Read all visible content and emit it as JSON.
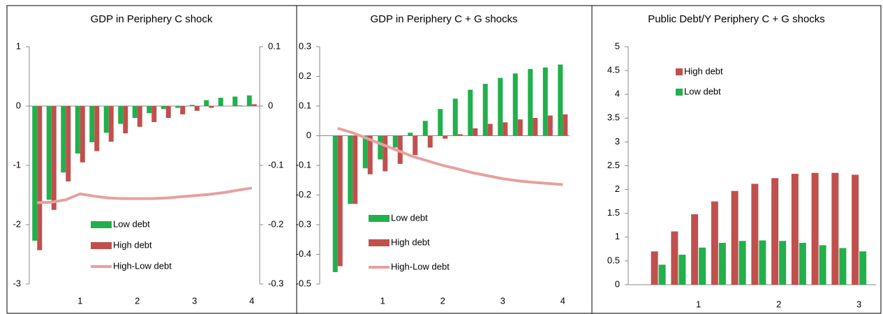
{
  "chart_data": [
    {
      "type": "bar",
      "title": "GDP in Periphery C shock",
      "categories": [
        null,
        null,
        null,
        "1",
        null,
        null,
        null,
        "2",
        null,
        null,
        null,
        "3",
        null,
        null,
        null,
        "4"
      ],
      "ylim": [
        -3,
        1
      ],
      "yticks": [
        -3,
        -2,
        -1,
        0,
        1
      ],
      "y2lim": [
        -0.3,
        0.1
      ],
      "y2ticks": [
        -0.3,
        -0.2,
        -0.1,
        0,
        0.1
      ],
      "series": [
        {
          "name": "Low debt",
          "type": "bar",
          "color": "#21b04b",
          "values": [
            -2.27,
            -1.58,
            -1.12,
            -0.8,
            -0.61,
            -0.45,
            -0.3,
            -0.2,
            -0.12,
            -0.05,
            -0.03,
            0.02,
            0.1,
            0.14,
            0.16,
            0.18
          ]
        },
        {
          "name": "High debt",
          "type": "bar",
          "color": "#c0504d",
          "values": [
            -2.43,
            -1.75,
            -1.27,
            -0.95,
            -0.76,
            -0.6,
            -0.46,
            -0.35,
            -0.27,
            -0.2,
            -0.14,
            -0.08,
            -0.03,
            0.0,
            0.01,
            0.03
          ]
        },
        {
          "name": "High-Low debt",
          "type": "line",
          "axis": "y2",
          "color": "#e6a19f",
          "values": [
            -0.163,
            -0.162,
            -0.158,
            -0.148,
            -0.152,
            -0.155,
            -0.156,
            -0.156,
            -0.156,
            -0.155,
            -0.153,
            -0.151,
            -0.149,
            -0.146,
            -0.142,
            -0.138
          ]
        }
      ]
    },
    {
      "type": "bar",
      "title": "GDP in Periphery C + G shocks",
      "categories": [
        null,
        null,
        null,
        "1",
        null,
        null,
        null,
        "2",
        null,
        null,
        null,
        "3",
        null,
        null,
        null,
        "4"
      ],
      "ylim": [
        -0.5,
        0.3
      ],
      "yticks": [
        -0.5,
        -0.4,
        -0.3,
        -0.2,
        -0.1,
        0,
        0.1,
        0.2,
        0.3
      ],
      "series": [
        {
          "name": "Low debt",
          "type": "bar",
          "color": "#21b04b",
          "values": [
            -0.46,
            -0.23,
            -0.11,
            -0.08,
            -0.04,
            0.01,
            0.05,
            0.09,
            0.125,
            0.155,
            0.175,
            0.195,
            0.21,
            0.225,
            0.23,
            0.24
          ]
        },
        {
          "name": "High debt",
          "type": "bar",
          "color": "#c0504d",
          "values": [
            -0.44,
            -0.23,
            -0.13,
            -0.12,
            -0.095,
            -0.065,
            -0.04,
            -0.01,
            0.005,
            0.025,
            0.04,
            0.045,
            0.055,
            0.06,
            0.068,
            0.072
          ]
        },
        {
          "name": "High-Low debt",
          "type": "line",
          "color": "#e6a19f",
          "values": [
            0.025,
            0.01,
            -0.01,
            -0.03,
            -0.05,
            -0.07,
            -0.085,
            -0.1,
            -0.112,
            -0.125,
            -0.135,
            -0.145,
            -0.152,
            -0.157,
            -0.161,
            -0.165
          ]
        }
      ]
    },
    {
      "type": "bar",
      "title": "Public Debt/Y Periphery C + G shocks",
      "categories": [
        null,
        null,
        null,
        "1",
        null,
        null,
        null,
        "2",
        null,
        null,
        null,
        "3"
      ],
      "ylim": [
        0,
        5
      ],
      "yticks": [
        0,
        0.5,
        1,
        1.5,
        2,
        2.5,
        3,
        3.5,
        4,
        4.5,
        5
      ],
      "series": [
        {
          "name": "High debt",
          "type": "bar",
          "color": "#c0504d",
          "values": [
            null,
            0.7,
            1.12,
            1.48,
            1.75,
            1.97,
            2.12,
            2.24,
            2.33,
            2.35,
            2.35,
            2.31
          ]
        },
        {
          "name": "Low debt",
          "type": "bar",
          "color": "#21b04b",
          "values": [
            null,
            0.42,
            0.63,
            0.78,
            0.88,
            0.92,
            0.93,
            0.92,
            0.88,
            0.83,
            0.77,
            0.7
          ]
        }
      ]
    }
  ]
}
